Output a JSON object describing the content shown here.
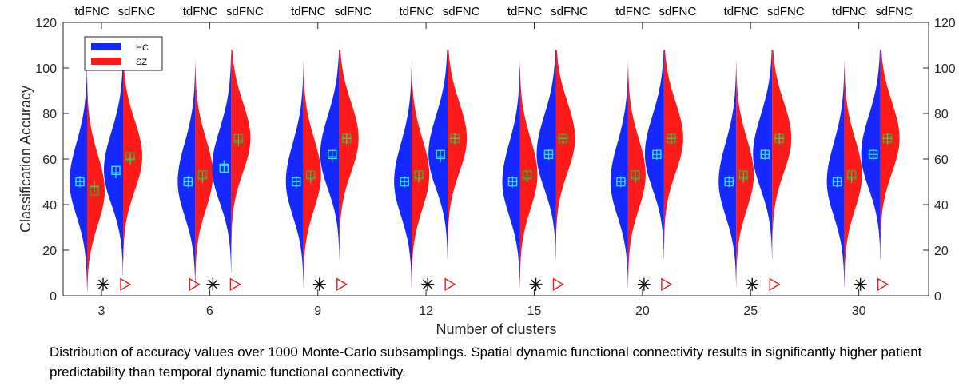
{
  "chart_data": {
    "type": "violin",
    "title": "",
    "xlabel": "Number of clusters",
    "ylabel": "Classification Accuracy",
    "ylim": [
      0,
      120
    ],
    "yticks": [
      0,
      20,
      40,
      60,
      80,
      100,
      120
    ],
    "right_yticks": [
      0,
      20,
      40,
      60,
      80,
      100,
      120
    ],
    "categories": [
      "3",
      "6",
      "9",
      "12",
      "15",
      "20",
      "25",
      "30"
    ],
    "group_labels": [
      "tdFNC",
      "sdFNC"
    ],
    "legend": [
      {
        "name": "HC",
        "color": "#1428ff"
      },
      {
        "name": "SZ",
        "color": "#ff1a1a"
      }
    ],
    "series": [
      {
        "method": "tdFNC",
        "HC_median": [
          50,
          50,
          50,
          50,
          50,
          50,
          50,
          50
        ],
        "SZ_median": [
          46,
          53,
          53,
          53,
          53,
          53,
          53,
          53
        ],
        "HC_mean": [
          50,
          50,
          50,
          50,
          50,
          50,
          50,
          50
        ],
        "SZ_mean": [
          48,
          52,
          52,
          52,
          52,
          52,
          52,
          52
        ]
      },
      {
        "method": "sdFNC",
        "HC_median": [
          55,
          56,
          62,
          62,
          62,
          62,
          62,
          62
        ],
        "SZ_median": [
          61,
          69,
          69,
          69,
          69,
          69,
          69,
          69
        ],
        "HC_mean": [
          54,
          57,
          61,
          61,
          62,
          62,
          62,
          62
        ],
        "SZ_mean": [
          60,
          68,
          69,
          69,
          69,
          69,
          69,
          69
        ]
      }
    ],
    "significance": [
      {
        "cluster": "3",
        "markers": [
          "asterisk",
          "triangle"
        ]
      },
      {
        "cluster": "6",
        "markers": [
          "triangle",
          "asterisk",
          "triangle"
        ]
      },
      {
        "cluster": "9",
        "markers": [
          "asterisk",
          "triangle"
        ]
      },
      {
        "cluster": "12",
        "markers": [
          "asterisk",
          "triangle"
        ]
      },
      {
        "cluster": "15",
        "markers": [
          "asterisk",
          "triangle"
        ]
      },
      {
        "cluster": "20",
        "markers": [
          "asterisk",
          "triangle"
        ]
      },
      {
        "cluster": "25",
        "markers": [
          "asterisk",
          "triangle"
        ]
      },
      {
        "cluster": "30",
        "markers": [
          "asterisk",
          "triangle"
        ]
      }
    ],
    "colors": {
      "hc": "#1428ff",
      "sz": "#ff1a1a",
      "median_box": "#26e0ff",
      "mean_cross": "#26e0ff",
      "sz_median_box": "#33a833",
      "marker": "#e02020"
    }
  },
  "caption": "Distribution of accuracy values over 1000 Monte-Carlo subsamplings. Spatial dynamic functional connectivity results in significantly higher patient predictability than temporal dynamic functional connectivity."
}
